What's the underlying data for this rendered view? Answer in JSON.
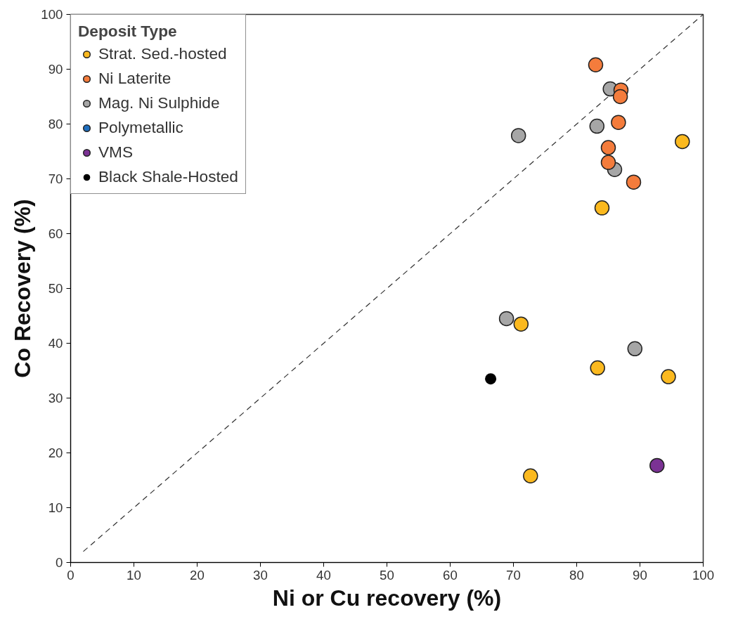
{
  "chart_data": {
    "type": "scatter",
    "xlabel": "Ni or Cu recovery (%)",
    "ylabel": "Co Recovery (%)",
    "legend_title": "Deposit Type",
    "xlim": [
      0,
      100
    ],
    "ylim": [
      0,
      100
    ],
    "xticks": [
      0,
      10,
      20,
      30,
      40,
      50,
      60,
      70,
      80,
      90,
      100
    ],
    "yticks": [
      0,
      10,
      20,
      30,
      40,
      50,
      60,
      70,
      80,
      90,
      100
    ],
    "grid": false,
    "legend": "top left",
    "marker": "circle",
    "series": [
      {
        "name": "Strat. Sed.-hosted",
        "color": "#fbb91f",
        "x": [
          96.7,
          84.0,
          71.2,
          83.3,
          94.5,
          72.7
        ],
        "values": [
          76.8,
          64.7,
          43.5,
          35.5,
          33.9,
          15.8
        ]
      },
      {
        "name": "Ni Laterite",
        "color": "#f47c3c",
        "x": [
          83.0,
          87.0,
          86.9,
          86.6,
          85.0,
          85.0,
          89.0
        ],
        "values": [
          90.8,
          86.2,
          85.0,
          80.3,
          75.7,
          73.0,
          69.4
        ]
      },
      {
        "name": "Mag. Ni Sulphide",
        "color": "#a6a6a6",
        "x": [
          85.3,
          83.2,
          70.8,
          86.0,
          68.9,
          89.2
        ],
        "values": [
          86.4,
          79.6,
          77.9,
          71.7,
          44.5,
          39.0
        ]
      },
      {
        "name": "Polymetallic",
        "color": "#1f6fbf"
      },
      {
        "name": "VMS",
        "color": "#7b3294",
        "x": [
          92.7
        ],
        "values": [
          17.7
        ]
      },
      {
        "name": "Black Shale-Hosted",
        "color": "#000000",
        "x": [
          66.4
        ],
        "values": [
          33.5
        ]
      },
      {
        "type": "line",
        "marker": "none",
        "line_style": "dashed",
        "color": "#333333",
        "x": [
          2,
          100
        ],
        "values": [
          2,
          100
        ]
      }
    ]
  }
}
